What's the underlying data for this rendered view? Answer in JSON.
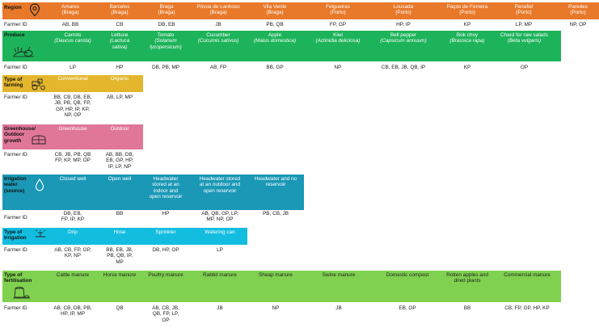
{
  "farmer_id_label": "Farmer ID",
  "region": {
    "label": "Region",
    "columns": [
      {
        "name": "Amares",
        "sub": "(Braga)",
        "ids": "AB, BB"
      },
      {
        "name": "Barcelos",
        "sub": "(Braga)",
        "ids": "CB"
      },
      {
        "name": "Braga",
        "sub": "(Braga)",
        "ids": "DB, EB"
      },
      {
        "name": "Póvoa de Lanhoso",
        "sub": "(Braga)",
        "ids": "JB"
      },
      {
        "name": "Vila Verde",
        "sub": "(Braga)",
        "ids": "PB, QB"
      },
      {
        "name": "Felgueiras",
        "sub": "(Porto)",
        "ids": "FP, GP"
      },
      {
        "name": "Lousada",
        "sub": "(Porto)",
        "ids": "HP, IP"
      },
      {
        "name": "Paços de Ferreira",
        "sub": "(Porto)",
        "ids": "KP"
      },
      {
        "name": "Penafiel",
        "sub": "(Porto)",
        "ids": "LP, MP"
      },
      {
        "name": "Paredes",
        "sub": "(Porto)",
        "ids": "NP, OP"
      }
    ]
  },
  "produce": {
    "label": "Produce",
    "columns": [
      {
        "name": "Carrots",
        "sci1": "(Daucus carota)",
        "sci2": "",
        "ids": "LP"
      },
      {
        "name": "Lettuce",
        "sci1": "(Lactuca",
        "sci2": "sativa)",
        "ids": "HP"
      },
      {
        "name": "Tomato",
        "sci1": "(Solanum",
        "sci2": "lycopersicum)",
        "ids": "DB, PB, MP"
      },
      {
        "name": "Cucumber",
        "sci1": "(Cucumis sativus)",
        "sci2": "",
        "ids": "AB, FP"
      },
      {
        "name": "Apple",
        "sci1": "(Malus domestica)",
        "sci2": "",
        "ids": "BB, GP"
      },
      {
        "name": "Kiwi",
        "sci1": "(Actinidia deliciosa)",
        "sci2": "",
        "ids": "NP"
      },
      {
        "name": "Bell pepper",
        "sci1": "(Capsicum annuum)",
        "sci2": "",
        "ids": "CB, EB, JB, QB, IP"
      },
      {
        "name": "Bok choy",
        "sci1": "(Brassica rapa)",
        "sci2": "",
        "ids": "KP"
      },
      {
        "name": "Chard for raw salads",
        "sci1": "(Beta vulgaris)",
        "sci2": "",
        "ids": "OP"
      }
    ]
  },
  "farming": {
    "label1": "Type of",
    "label2": "farming",
    "columns": [
      {
        "name": "Conventional",
        "ids": [
          "BB, CB, DB, EB,",
          "JB, PB, QB, FP,",
          "GP, HP, IP, KP,",
          "NP, OP"
        ]
      },
      {
        "name": "Organic",
        "ids": [
          "AB, LP, MP"
        ]
      }
    ]
  },
  "greenhouse": {
    "label1": "Greenhouse/",
    "label2": "Outdoor",
    "label3": "growth",
    "columns": [
      {
        "name": "Greenhouse",
        "ids": [
          "CB, JB, PB, QB",
          "FP, KP, MP, OP"
        ]
      },
      {
        "name": "Outdoor",
        "ids": [
          "AB, BB, DB,",
          "EB, GP, HP,",
          "IP, LP, NP"
        ]
      }
    ]
  },
  "irrigation_source": {
    "label1": "Irrigation",
    "label2": "water",
    "label3": "(source)",
    "columns": [
      {
        "name": [
          "Closed well"
        ],
        "ids": [
          "DB, EB,",
          "FP, IP, KP"
        ]
      },
      {
        "name": [
          "Open well"
        ],
        "ids": [
          "BB"
        ]
      },
      {
        "name": [
          "Headwater",
          "stored at an",
          "indoor and",
          "open reservoir"
        ],
        "ids": [
          "HP"
        ]
      },
      {
        "name": [
          "Headwater stored",
          "at an outdoor and",
          "open reservoir"
        ],
        "ids": [
          "AB, QB, GP, LP,",
          "MP, NP, OP"
        ]
      },
      {
        "name": [
          "Headwater and no",
          "reservoir"
        ],
        "ids": [
          "PB, CB, JB"
        ]
      }
    ]
  },
  "irrigation_type": {
    "label1": "Type of",
    "label2": "Irrigation",
    "columns": [
      {
        "name": "Drip",
        "ids": [
          "AB, CB, FP, GP,",
          "KP, NP"
        ]
      },
      {
        "name": "Hose",
        "ids": [
          "BB, EB, JB,",
          "PB, QB, IP,",
          "MP"
        ]
      },
      {
        "name": "Sprinkler",
        "ids": [
          "DB, HP, OP"
        ]
      },
      {
        "name": "Watering can",
        "ids": [
          "LP"
        ]
      }
    ]
  },
  "fertilisation": {
    "label1": "Type of",
    "label2": "fertilisation",
    "columns": [
      {
        "name": [
          "Cattle manure"
        ],
        "ids": [
          "AB, CB, DB, PB,",
          "HP, IP, MP"
        ]
      },
      {
        "name": [
          "Horse manure"
        ],
        "ids": [
          "QB"
        ]
      },
      {
        "name": [
          "Poultry manure"
        ],
        "ids": [
          "AB, CB, JB,",
          "QB, FP, LP,",
          "OP"
        ]
      },
      {
        "name": [
          "Rabbit manure"
        ],
        "ids": [
          "JB"
        ]
      },
      {
        "name": [
          "Sheap manure"
        ],
        "ids": [
          "NP"
        ]
      },
      {
        "name": [
          "Swine manure"
        ],
        "ids": [
          "JB"
        ]
      },
      {
        "name": [
          "Domestic compost"
        ],
        "ids": [
          "EB, OP"
        ]
      },
      {
        "name": [
          "Rotten apples and",
          "dried plants"
        ],
        "ids": [
          "BB"
        ]
      },
      {
        "name": [
          "Commercial manure"
        ],
        "ids": [
          "CB, FP, GP, HP, KP"
        ]
      }
    ]
  },
  "colors": {
    "region": "#e8792a",
    "produce": "#1db35a",
    "farming": "#e3b62d",
    "greenhouse": "#e07799",
    "irrigation_source": "#1a98b6",
    "irrigation_type": "#13bde0",
    "fertilisation": "#7fd14f"
  }
}
